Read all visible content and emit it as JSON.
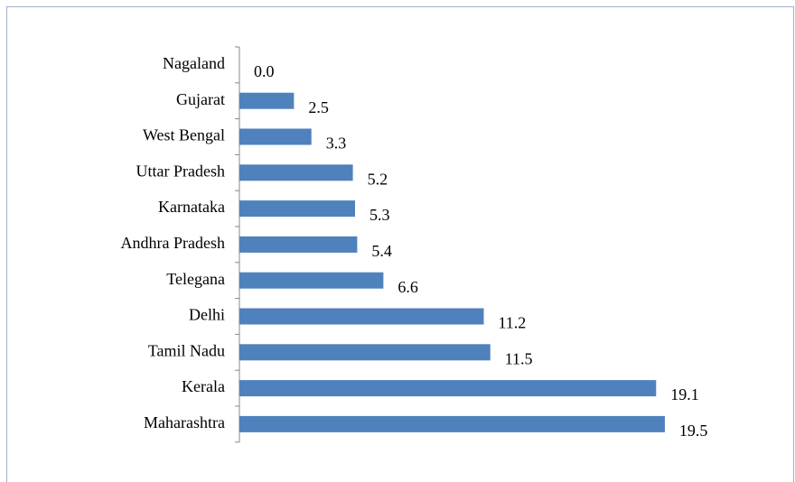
{
  "chart_data": {
    "type": "bar",
    "orientation": "horizontal",
    "categories": [
      "Nagaland",
      "Gujarat",
      "West Bengal",
      "Uttar Pradesh",
      "Karnataka",
      "Andhra Pradesh",
      "Telegana",
      "Delhi",
      "Tamil Nadu",
      "Kerala",
      "Maharashtra"
    ],
    "values": [
      0.0,
      2.5,
      3.3,
      5.2,
      5.3,
      5.4,
      6.6,
      11.2,
      11.5,
      19.1,
      19.5
    ],
    "value_labels": [
      "0.0",
      "2.5",
      "3.3",
      "5.2",
      "5.3",
      "5.4",
      "6.6",
      "11.2",
      "11.5",
      "19.1",
      "19.5"
    ],
    "color": "#4f81bd"
  }
}
